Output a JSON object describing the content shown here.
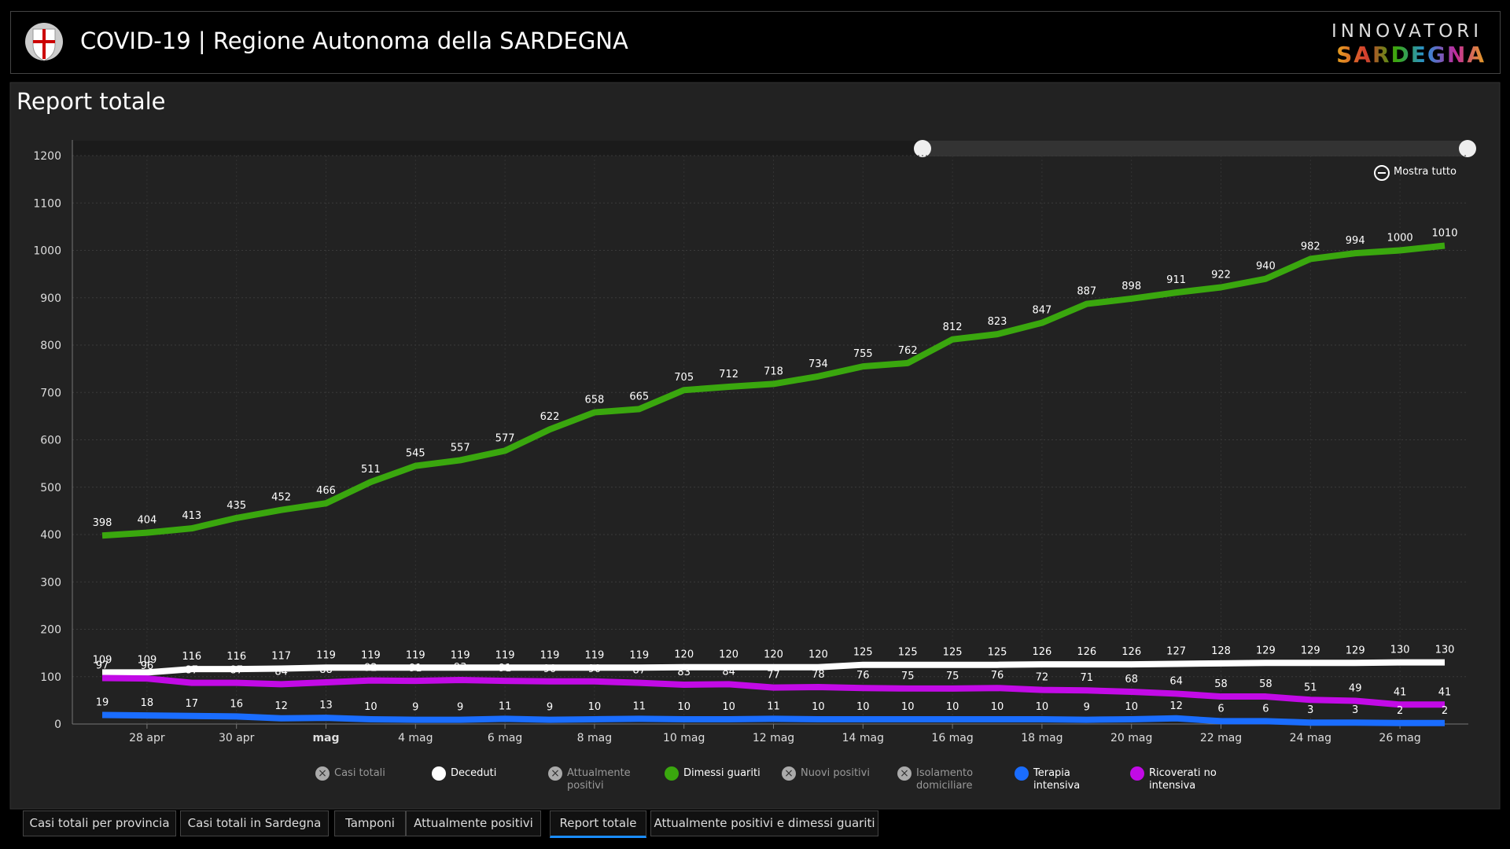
{
  "header": {
    "title": "COVID-19 | Regione Autonoma della SARDEGNA",
    "brand_top": "INNOVATORI",
    "brand_bottom": "SARDEGNA"
  },
  "panel_title": "Report totale",
  "zoom_button": "Mostra tutto",
  "tabs": [
    "Casi totali per provincia",
    "Casi totali in Sardegna",
    "Tamponi",
    "Attualmente positivi",
    "Report totale",
    "Attualmente positivi e dimessi guariti"
  ],
  "active_tab": 4,
  "chart_data": {
    "type": "line",
    "categories": [
      null,
      "28 apr",
      null,
      "30 apr",
      null,
      "mag",
      null,
      "4 mag",
      null,
      "6 mag",
      null,
      "8 mag",
      null,
      "10 mag",
      null,
      "12 mag",
      null,
      "14 mag",
      null,
      "16 mag",
      null,
      "18 mag",
      null,
      "20 mag",
      null,
      "22 mag",
      null,
      "24 mag",
      null,
      "26 mag",
      null
    ],
    "legend_disabled": [
      "Casi totali",
      "Attualmente positivi",
      "Nuovi positivi",
      "Isolamento domiciliare"
    ],
    "series": [
      {
        "name": "Deceduti",
        "color": "#ffffff",
        "values": [
          109,
          109,
          116,
          116,
          117,
          119,
          119,
          119,
          119,
          119,
          119,
          119,
          119,
          120,
          120,
          120,
          120,
          125,
          125,
          125,
          125,
          126,
          126,
          126,
          127,
          128,
          129,
          129,
          129,
          130,
          130
        ]
      },
      {
        "name": "Dimessi guariti",
        "color": "#3aa70e",
        "values": [
          398,
          404,
          413,
          435,
          452,
          466,
          511,
          545,
          557,
          577,
          622,
          658,
          665,
          705,
          712,
          718,
          734,
          755,
          762,
          812,
          823,
          847,
          887,
          898,
          911,
          922,
          940,
          982,
          994,
          1000,
          1010
        ]
      },
      {
        "name": "Terapia intensiva",
        "color": "#1a6dff",
        "values": [
          19,
          18,
          17,
          16,
          12,
          13,
          10,
          9,
          9,
          11,
          9,
          10,
          11,
          10,
          10,
          11,
          10,
          10,
          10,
          10,
          10,
          10,
          9,
          10,
          12,
          6,
          6,
          3,
          3,
          2,
          2
        ]
      },
      {
        "name": "Ricoverati no intensiva",
        "color": "#c20ae6",
        "values": [
          97,
          96,
          87,
          87,
          84,
          88,
          92,
          91,
          93,
          91,
          90,
          90,
          87,
          83,
          84,
          77,
          78,
          76,
          75,
          75,
          76,
          72,
          71,
          68,
          64,
          58,
          58,
          51,
          49,
          41,
          41
        ]
      }
    ],
    "ylim": [
      0,
      1200
    ],
    "yticks": [
      0,
      100,
      200,
      300,
      400,
      500,
      600,
      700,
      800,
      900,
      1000,
      1100,
      1200
    ],
    "grid": true
  }
}
